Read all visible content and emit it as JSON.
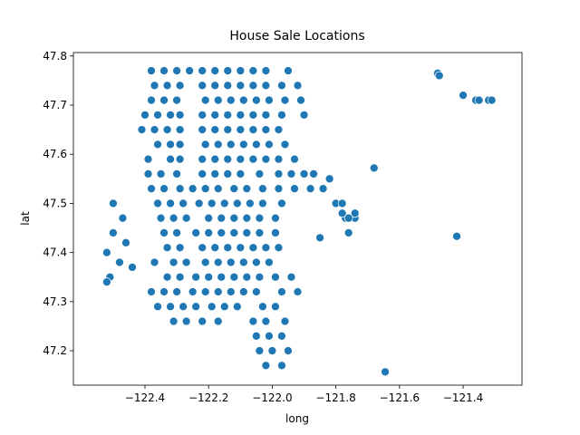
{
  "chart_data": {
    "type": "scatter",
    "title": "House Sale Locations",
    "x_label": "long",
    "y_label": "lat",
    "color": "#1f77b4",
    "xlim": [
      -122.625,
      -121.215
    ],
    "ylim": [
      47.13,
      47.807
    ],
    "xticks": [
      {
        "value": -122.4,
        "label": "−122.4"
      },
      {
        "value": -122.2,
        "label": "−122.2"
      },
      {
        "value": -122.0,
        "label": "−122.0"
      },
      {
        "value": -121.8,
        "label": "−121.8"
      },
      {
        "value": -121.6,
        "label": "−121.6"
      },
      {
        "value": -121.4,
        "label": "−121.4"
      }
    ],
    "yticks": [
      47.2,
      47.3,
      47.4,
      47.5,
      47.6,
      47.7,
      47.8
    ],
    "x": [
      -122.38,
      -122.34,
      -122.3,
      -122.26,
      -122.22,
      -122.18,
      -122.14,
      -122.1,
      -122.06,
      -122.02,
      -121.95,
      -122.37,
      -122.33,
      -122.29,
      -122.22,
      -122.18,
      -122.14,
      -122.1,
      -122.06,
      -122.02,
      -121.97,
      -121.92,
      -122.38,
      -122.34,
      -122.3,
      -122.21,
      -122.17,
      -122.13,
      -122.09,
      -122.05,
      -122.01,
      -121.96,
      -121.91,
      -122.4,
      -122.36,
      -122.32,
      -122.29,
      -122.22,
      -122.18,
      -122.14,
      -122.1,
      -122.06,
      -122.02,
      -121.97,
      -121.9,
      -122.41,
      -122.37,
      -122.33,
      -122.29,
      -122.22,
      -122.18,
      -122.14,
      -122.1,
      -122.06,
      -122.02,
      -121.98,
      -122.36,
      -122.32,
      -122.29,
      -122.21,
      -122.17,
      -122.13,
      -122.09,
      -122.05,
      -122.01,
      -121.96,
      -122.39,
      -122.32,
      -122.29,
      -122.22,
      -122.18,
      -122.14,
      -122.1,
      -122.06,
      -122.02,
      -121.98,
      -121.93,
      -122.39,
      -122.35,
      -122.3,
      -122.22,
      -122.18,
      -122.14,
      -122.1,
      -122.04,
      -121.98,
      -121.94,
      -121.9,
      -121.87,
      -122.38,
      -122.34,
      -122.29,
      -122.25,
      -122.21,
      -122.17,
      -122.12,
      -122.08,
      -122.03,
      -121.98,
      -121.93,
      -121.88,
      -121.84,
      -122.36,
      -122.32,
      -122.28,
      -122.23,
      -122.19,
      -122.15,
      -122.11,
      -122.07,
      -122.03,
      -121.97,
      -121.8,
      -121.78,
      -122.35,
      -122.31,
      -122.27,
      -122.2,
      -122.16,
      -122.12,
      -122.08,
      -122.04,
      -121.99,
      -121.77,
      -121.74,
      -122.34,
      -122.3,
      -122.24,
      -122.2,
      -122.16,
      -122.12,
      -122.08,
      -122.04,
      -121.99,
      -121.76,
      -122.33,
      -122.29,
      -122.22,
      -122.18,
      -122.14,
      -122.1,
      -122.06,
      -122.02,
      -121.98,
      -122.37,
      -122.31,
      -122.27,
      -122.21,
      -122.17,
      -122.13,
      -122.09,
      -122.05,
      -122.01,
      -122.33,
      -122.29,
      -122.24,
      -122.2,
      -122.16,
      -122.12,
      -122.08,
      -122.04,
      -121.99,
      -121.94,
      -122.38,
      -122.34,
      -122.3,
      -122.25,
      -122.21,
      -122.17,
      -122.13,
      -122.09,
      -122.05,
      -121.97,
      -121.92,
      -122.36,
      -122.32,
      -122.28,
      -122.24,
      -122.19,
      -122.15,
      -122.11,
      -122.03,
      -121.99,
      -122.31,
      -122.27,
      -122.22,
      -122.17,
      -122.06,
      -122.02,
      -121.96,
      -122.05,
      -122.01,
      -121.97,
      -122.04,
      -122.0,
      -121.95,
      -122.02,
      -121.97,
      -122.5,
      -122.47,
      -122.5,
      -122.46,
      -122.52,
      -122.48,
      -122.44,
      -122.51,
      -122.52,
      -121.48,
      -121.475,
      -121.4,
      -121.36,
      -121.35,
      -121.32,
      -121.31,
      -121.68,
      -121.42,
      -121.645,
      -121.85,
      -121.78,
      -121.76,
      -121.74,
      -121.82
    ],
    "values": [
      47.77,
      47.77,
      47.77,
      47.77,
      47.77,
      47.77,
      47.77,
      47.77,
      47.77,
      47.77,
      47.77,
      47.74,
      47.74,
      47.74,
      47.74,
      47.74,
      47.74,
      47.74,
      47.74,
      47.74,
      47.74,
      47.74,
      47.71,
      47.71,
      47.71,
      47.71,
      47.71,
      47.71,
      47.71,
      47.71,
      47.71,
      47.71,
      47.71,
      47.68,
      47.68,
      47.68,
      47.68,
      47.68,
      47.68,
      47.68,
      47.68,
      47.68,
      47.68,
      47.68,
      47.68,
      47.65,
      47.65,
      47.65,
      47.65,
      47.65,
      47.65,
      47.65,
      47.65,
      47.65,
      47.65,
      47.65,
      47.62,
      47.62,
      47.62,
      47.62,
      47.62,
      47.62,
      47.62,
      47.62,
      47.62,
      47.62,
      47.59,
      47.59,
      47.59,
      47.59,
      47.59,
      47.59,
      47.59,
      47.59,
      47.59,
      47.59,
      47.59,
      47.56,
      47.56,
      47.56,
      47.56,
      47.56,
      47.56,
      47.56,
      47.56,
      47.56,
      47.56,
      47.56,
      47.56,
      47.53,
      47.53,
      47.53,
      47.53,
      47.53,
      47.53,
      47.53,
      47.53,
      47.53,
      47.53,
      47.53,
      47.53,
      47.53,
      47.5,
      47.5,
      47.5,
      47.5,
      47.5,
      47.5,
      47.5,
      47.5,
      47.5,
      47.5,
      47.5,
      47.5,
      47.47,
      47.47,
      47.47,
      47.47,
      47.47,
      47.47,
      47.47,
      47.47,
      47.47,
      47.47,
      47.47,
      47.44,
      47.44,
      47.44,
      47.44,
      47.44,
      47.44,
      47.44,
      47.44,
      47.44,
      47.44,
      47.41,
      47.41,
      47.41,
      47.41,
      47.41,
      47.41,
      47.41,
      47.41,
      47.41,
      47.38,
      47.38,
      47.38,
      47.38,
      47.38,
      47.38,
      47.38,
      47.38,
      47.38,
      47.35,
      47.35,
      47.35,
      47.35,
      47.35,
      47.35,
      47.35,
      47.35,
      47.35,
      47.35,
      47.32,
      47.32,
      47.32,
      47.32,
      47.32,
      47.32,
      47.32,
      47.32,
      47.32,
      47.32,
      47.32,
      47.29,
      47.29,
      47.29,
      47.29,
      47.29,
      47.29,
      47.29,
      47.29,
      47.29,
      47.26,
      47.26,
      47.26,
      47.26,
      47.26,
      47.26,
      47.26,
      47.23,
      47.23,
      47.23,
      47.2,
      47.2,
      47.2,
      47.17,
      47.17,
      47.5,
      47.47,
      47.44,
      47.42,
      47.4,
      47.38,
      47.37,
      47.35,
      47.34,
      47.765,
      47.76,
      47.72,
      47.71,
      47.71,
      47.71,
      47.71,
      47.572,
      47.433,
      47.157,
      47.43,
      47.48,
      47.47,
      47.48,
      47.55
    ]
  }
}
